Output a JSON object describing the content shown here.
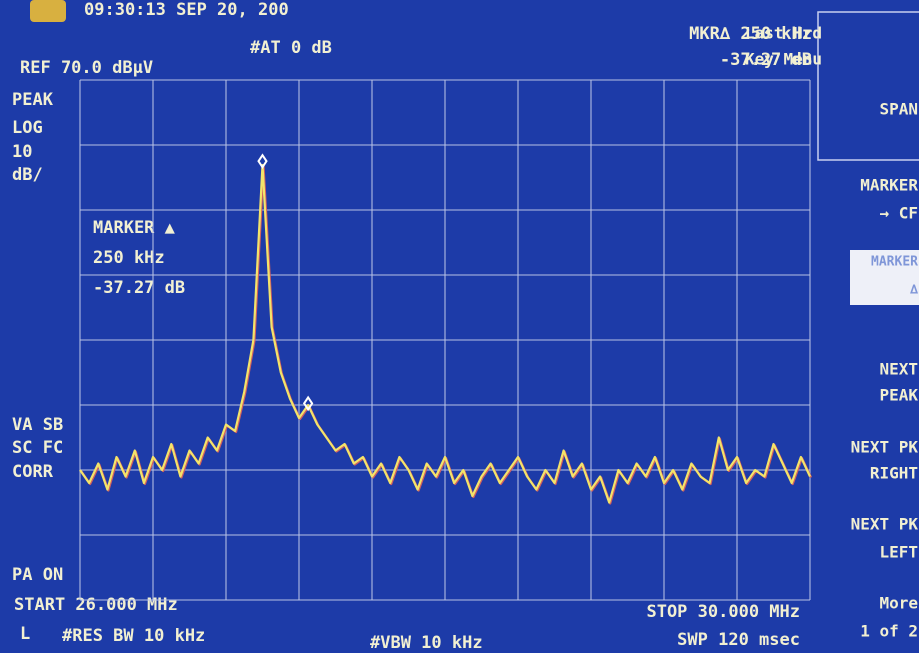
{
  "header": {
    "clock": "09:30:13 SEP 20, 200",
    "ref": "REF 70.0 dBµV",
    "atten": "#AT 0 dB",
    "marker_readout": [
      "MKR∆ 250 kHz",
      "-37.27 dB"
    ]
  },
  "left_annotations": [
    "PEAK",
    "LOG",
    "10",
    "dB/",
    "VA SB",
    "SC FC",
    "CORR",
    "PA ON"
  ],
  "marker_box": [
    "MARKER ▲",
    "250 kHz",
    "-37.27 dB"
  ],
  "footer": {
    "start": "START 26.000 MHz",
    "stop": "STOP 30.000 MHz",
    "mode": "L",
    "rbw": "#RES BW 10 kHz",
    "vbw": "#VBW 10 kHz",
    "sweep": "SWP 120 msec"
  },
  "softkeys": [
    [
      "Last Hrd",
      "Key Menu"
    ],
    [
      "SPAN"
    ],
    [
      "MARKER",
      "→ CF"
    ],
    [
      "MARKER",
      "∆"
    ],
    [
      "NEXT",
      "PEAK"
    ],
    [
      "NEXT PK",
      "RIGHT"
    ],
    [
      "NEXT PK",
      "LEFT"
    ],
    [
      "More",
      "1 of 2"
    ]
  ],
  "chart_data": {
    "type": "line",
    "color": "#f3e46a",
    "x": [
      26,
      26.05,
      26.1,
      26.15,
      26.2,
      26.25,
      26.3,
      26.35,
      26.4,
      26.45,
      26.5,
      26.55,
      26.6,
      26.65,
      26.7,
      26.75,
      26.8,
      26.85,
      26.9,
      26.95,
      27,
      27.05,
      27.1,
      27.15,
      27.2,
      27.25,
      27.3,
      27.35,
      27.4,
      27.45,
      27.5,
      27.55,
      27.6,
      27.65,
      27.7,
      27.75,
      27.8,
      27.85,
      27.9,
      27.95,
      28,
      28.05,
      28.1,
      28.15,
      28.2,
      28.25,
      28.3,
      28.35,
      28.4,
      28.45,
      28.5,
      28.55,
      28.6,
      28.65,
      28.7,
      28.75,
      28.8,
      28.85,
      28.9,
      28.95,
      29,
      29.05,
      29.1,
      29.15,
      29.2,
      29.25,
      29.3,
      29.35,
      29.4,
      29.45,
      29.5,
      29.55,
      29.6,
      29.65,
      29.7,
      29.75,
      29.8,
      29.85,
      29.9,
      29.95,
      30
    ],
    "values": [
      10,
      8,
      11,
      7,
      12,
      9,
      13,
      8,
      12,
      10,
      14,
      9,
      13,
      11,
      15,
      13,
      17,
      16,
      22,
      30,
      56.9,
      32,
      25,
      21,
      18,
      20,
      17,
      15,
      13,
      14,
      11,
      12,
      9,
      11,
      8,
      12,
      10,
      7,
      11,
      9,
      12,
      8,
      10,
      6,
      9,
      11,
      8,
      10,
      12,
      9,
      7,
      10,
      8,
      13,
      9,
      11,
      7,
      9,
      5,
      10,
      8,
      11,
      9,
      12,
      8,
      10,
      7,
      11,
      9,
      8,
      15,
      10,
      12,
      8,
      10,
      9,
      14,
      11,
      8,
      12,
      9
    ],
    "markers": {
      "x": [
        27,
        27.25
      ],
      "values": [
        56.9,
        19.63
      ]
    },
    "xlim": [
      26,
      30
    ],
    "ylim": [
      -10,
      70
    ],
    "xticks": [
      26,
      26.4,
      26.8,
      27.2,
      27.6,
      28,
      28.4,
      28.8,
      29.2,
      29.6,
      30
    ],
    "yticks": [
      -10,
      0,
      10,
      20,
      30,
      40,
      50,
      60,
      70
    ],
    "grid": true
  }
}
